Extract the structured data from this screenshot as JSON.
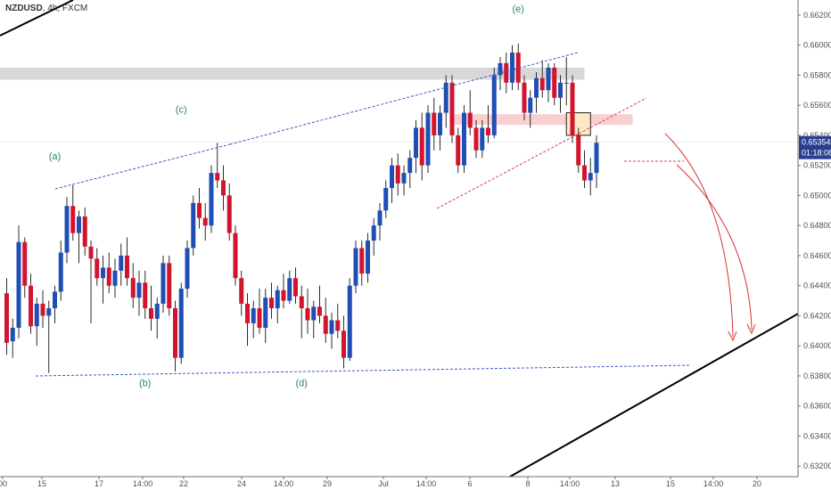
{
  "header": {
    "symbol": "NZDUSD",
    "interval": "4h",
    "exchange": "FXCM"
  },
  "current_price": {
    "price": "0.65354",
    "countdown": "01:18:08",
    "value": 0.65354,
    "color": "#2a3f8f"
  },
  "colors": {
    "bull": "#1f4fb4",
    "bear": "#d2142d",
    "wick": "#2b2b2b",
    "wave_label": "#2f7f6f",
    "trend_dashed": "#3f57c8",
    "red_dashed": "#e04040",
    "projection": "#d63030"
  },
  "chart_data": {
    "type": "candlestick",
    "title": "NZDUSD, 4h, FXCM",
    "ylim": [
      0.6313,
      0.663
    ],
    "y_ticks": [
      "0.66200",
      "0.66000",
      "0.65800",
      "0.65600",
      "0.65400",
      "0.65200",
      "0.65000",
      "0.64800",
      "0.64600",
      "0.64400",
      "0.64200",
      "0.64000",
      "0.63800",
      "0.63600",
      "0.63400",
      "0.63200"
    ],
    "x_ticks": [
      "00",
      "15",
      "17",
      "14:00",
      "22",
      "24",
      "14:00",
      "29",
      "Jul",
      "14:00",
      "6",
      "8",
      "14:00",
      "13",
      "15",
      "14:00",
      "20"
    ],
    "candles": [
      [
        0.6435,
        0.6445,
        0.6394,
        0.6402
      ],
      [
        0.6403,
        0.6418,
        0.6392,
        0.6412
      ],
      [
        0.6412,
        0.648,
        0.6405,
        0.6469
      ],
      [
        0.6469,
        0.6472,
        0.6432,
        0.644
      ],
      [
        0.644,
        0.6448,
        0.6408,
        0.6413
      ],
      [
        0.6413,
        0.6432,
        0.64,
        0.6428
      ],
      [
        0.6428,
        0.6437,
        0.6412,
        0.642
      ],
      [
        0.642,
        0.643,
        0.6382,
        0.6425
      ],
      [
        0.6425,
        0.644,
        0.6415,
        0.6436
      ],
      [
        0.6436,
        0.647,
        0.643,
        0.6462
      ],
      [
        0.6462,
        0.6499,
        0.6455,
        0.6493
      ],
      [
        0.6493,
        0.6507,
        0.647,
        0.6475
      ],
      [
        0.6475,
        0.649,
        0.6455,
        0.6486
      ],
      [
        0.6486,
        0.6492,
        0.646,
        0.6466
      ],
      [
        0.6466,
        0.647,
        0.6415,
        0.6458
      ],
      [
        0.6458,
        0.6465,
        0.644,
        0.6445
      ],
      [
        0.6445,
        0.646,
        0.6428,
        0.6452
      ],
      [
        0.6452,
        0.6462,
        0.6435,
        0.644
      ],
      [
        0.644,
        0.6458,
        0.6432,
        0.645
      ],
      [
        0.645,
        0.6468,
        0.644,
        0.646
      ],
      [
        0.646,
        0.6472,
        0.644,
        0.6445
      ],
      [
        0.6445,
        0.6455,
        0.6425,
        0.6432
      ],
      [
        0.6432,
        0.645,
        0.642,
        0.6442
      ],
      [
        0.6442,
        0.645,
        0.6418,
        0.6425
      ],
      [
        0.6425,
        0.644,
        0.641,
        0.6418
      ],
      [
        0.6418,
        0.6432,
        0.6405,
        0.6428
      ],
      [
        0.6428,
        0.646,
        0.6422,
        0.6455
      ],
      [
        0.6455,
        0.646,
        0.642,
        0.6425
      ],
      [
        0.6425,
        0.643,
        0.6383,
        0.6392
      ],
      [
        0.6392,
        0.6442,
        0.6388,
        0.6438
      ],
      [
        0.6438,
        0.647,
        0.6432,
        0.6465
      ],
      [
        0.6465,
        0.65,
        0.646,
        0.6495
      ],
      [
        0.6495,
        0.6505,
        0.6478,
        0.6485
      ],
      [
        0.6485,
        0.6495,
        0.647,
        0.648
      ],
      [
        0.648,
        0.652,
        0.6475,
        0.6515
      ],
      [
        0.6515,
        0.6535,
        0.6505,
        0.651
      ],
      [
        0.651,
        0.652,
        0.649,
        0.65
      ],
      [
        0.65,
        0.6508,
        0.647,
        0.6475
      ],
      [
        0.6475,
        0.648,
        0.644,
        0.6445
      ],
      [
        0.6445,
        0.645,
        0.642,
        0.6428
      ],
      [
        0.6428,
        0.6435,
        0.64,
        0.6415
      ],
      [
        0.6415,
        0.643,
        0.6405,
        0.6425
      ],
      [
        0.6425,
        0.6438,
        0.6408,
        0.6412
      ],
      [
        0.6412,
        0.6438,
        0.6402,
        0.6432
      ],
      [
        0.6432,
        0.6442,
        0.6418,
        0.6425
      ],
      [
        0.6425,
        0.644,
        0.6415,
        0.6437
      ],
      [
        0.6437,
        0.6448,
        0.6425,
        0.643
      ],
      [
        0.643,
        0.645,
        0.6428,
        0.6445
      ],
      [
        0.6445,
        0.6452,
        0.6428,
        0.6433
      ],
      [
        0.6433,
        0.644,
        0.6405,
        0.6425
      ],
      [
        0.6425,
        0.6438,
        0.6408,
        0.6417
      ],
      [
        0.6417,
        0.643,
        0.6405,
        0.6426
      ],
      [
        0.6426,
        0.644,
        0.6415,
        0.642
      ],
      [
        0.642,
        0.6432,
        0.6402,
        0.6408
      ],
      [
        0.6408,
        0.6422,
        0.6398,
        0.6417
      ],
      [
        0.6417,
        0.6428,
        0.6405,
        0.641
      ],
      [
        0.641,
        0.642,
        0.6385,
        0.6392
      ],
      [
        0.6392,
        0.6445,
        0.639,
        0.644
      ],
      [
        0.644,
        0.647,
        0.6435,
        0.6465
      ],
      [
        0.6465,
        0.647,
        0.644,
        0.6448
      ],
      [
        0.6448,
        0.6475,
        0.6442,
        0.647
      ],
      [
        0.647,
        0.6485,
        0.646,
        0.648
      ],
      [
        0.648,
        0.6495,
        0.647,
        0.649
      ],
      [
        0.649,
        0.651,
        0.6485,
        0.6505
      ],
      [
        0.6505,
        0.6525,
        0.6495,
        0.652
      ],
      [
        0.652,
        0.6528,
        0.65,
        0.6508
      ],
      [
        0.6508,
        0.652,
        0.65,
        0.6515
      ],
      [
        0.6515,
        0.653,
        0.6505,
        0.6525
      ],
      [
        0.6525,
        0.655,
        0.6515,
        0.6545
      ],
      [
        0.6545,
        0.6555,
        0.651,
        0.652
      ],
      [
        0.652,
        0.656,
        0.6515,
        0.6555
      ],
      [
        0.6555,
        0.6565,
        0.653,
        0.654
      ],
      [
        0.654,
        0.656,
        0.653,
        0.6555
      ],
      [
        0.6555,
        0.658,
        0.6545,
        0.6575
      ],
      [
        0.6575,
        0.658,
        0.6535,
        0.654
      ],
      [
        0.654,
        0.6545,
        0.6515,
        0.652
      ],
      [
        0.652,
        0.656,
        0.6515,
        0.6555
      ],
      [
        0.6555,
        0.657,
        0.654,
        0.6545
      ],
      [
        0.6545,
        0.655,
        0.6525,
        0.653
      ],
      [
        0.653,
        0.655,
        0.6525,
        0.6545
      ],
      [
        0.6545,
        0.656,
        0.6535,
        0.654
      ],
      [
        0.654,
        0.6585,
        0.6538,
        0.658
      ],
      [
        0.658,
        0.6592,
        0.657,
        0.6588
      ],
      [
        0.6588,
        0.6595,
        0.6568,
        0.6575
      ],
      [
        0.6575,
        0.66,
        0.657,
        0.6595
      ],
      [
        0.6595,
        0.6601,
        0.657,
        0.6575
      ],
      [
        0.6575,
        0.658,
        0.655,
        0.6555
      ],
      [
        0.6555,
        0.657,
        0.6545,
        0.6565
      ],
      [
        0.6565,
        0.6582,
        0.6555,
        0.6578
      ],
      [
        0.6578,
        0.659,
        0.6565,
        0.657
      ],
      [
        0.657,
        0.6588,
        0.6562,
        0.6585
      ],
      [
        0.6585,
        0.6588,
        0.656,
        0.6565
      ],
      [
        0.6565,
        0.658,
        0.6555,
        0.6575
      ],
      [
        0.6575,
        0.6592,
        0.656,
        0.6575
      ],
      [
        0.6575,
        0.658,
        0.6535,
        0.654
      ],
      [
        0.654,
        0.6545,
        0.6515,
        0.652
      ],
      [
        0.652,
        0.653,
        0.6505,
        0.651
      ],
      [
        0.651,
        0.6525,
        0.65,
        0.6515
      ],
      [
        0.6515,
        0.654,
        0.6505,
        0.6535
      ]
    ],
    "wave_labels": [
      {
        "text": "(a)",
        "price": 0.6524,
        "index": 8
      },
      {
        "text": "(c)",
        "price": 0.6555,
        "index": 29
      },
      {
        "text": "(b)",
        "price": 0.6373,
        "index": 23
      },
      {
        "text": "(d)",
        "price": 0.6373,
        "index": 49
      },
      {
        "text": "(e)",
        "price": 0.6622,
        "index": 85
      }
    ],
    "zones": [
      {
        "name": "grey-resistance",
        "from_index": -5,
        "to_index": 96,
        "price_top": 0.6585,
        "price_bottom": 0.6577,
        "color": "#d8d8d8"
      },
      {
        "name": "pink-zone",
        "from_index": 74,
        "to_index": 104,
        "price_top": 0.6554,
        "price_bottom": 0.6547,
        "color": "#f9cfcf"
      },
      {
        "name": "orange-box",
        "from_index": 93,
        "to_index": 97,
        "price_top": 0.6555,
        "price_bottom": 0.654,
        "color": "#fde9c8"
      }
    ]
  }
}
